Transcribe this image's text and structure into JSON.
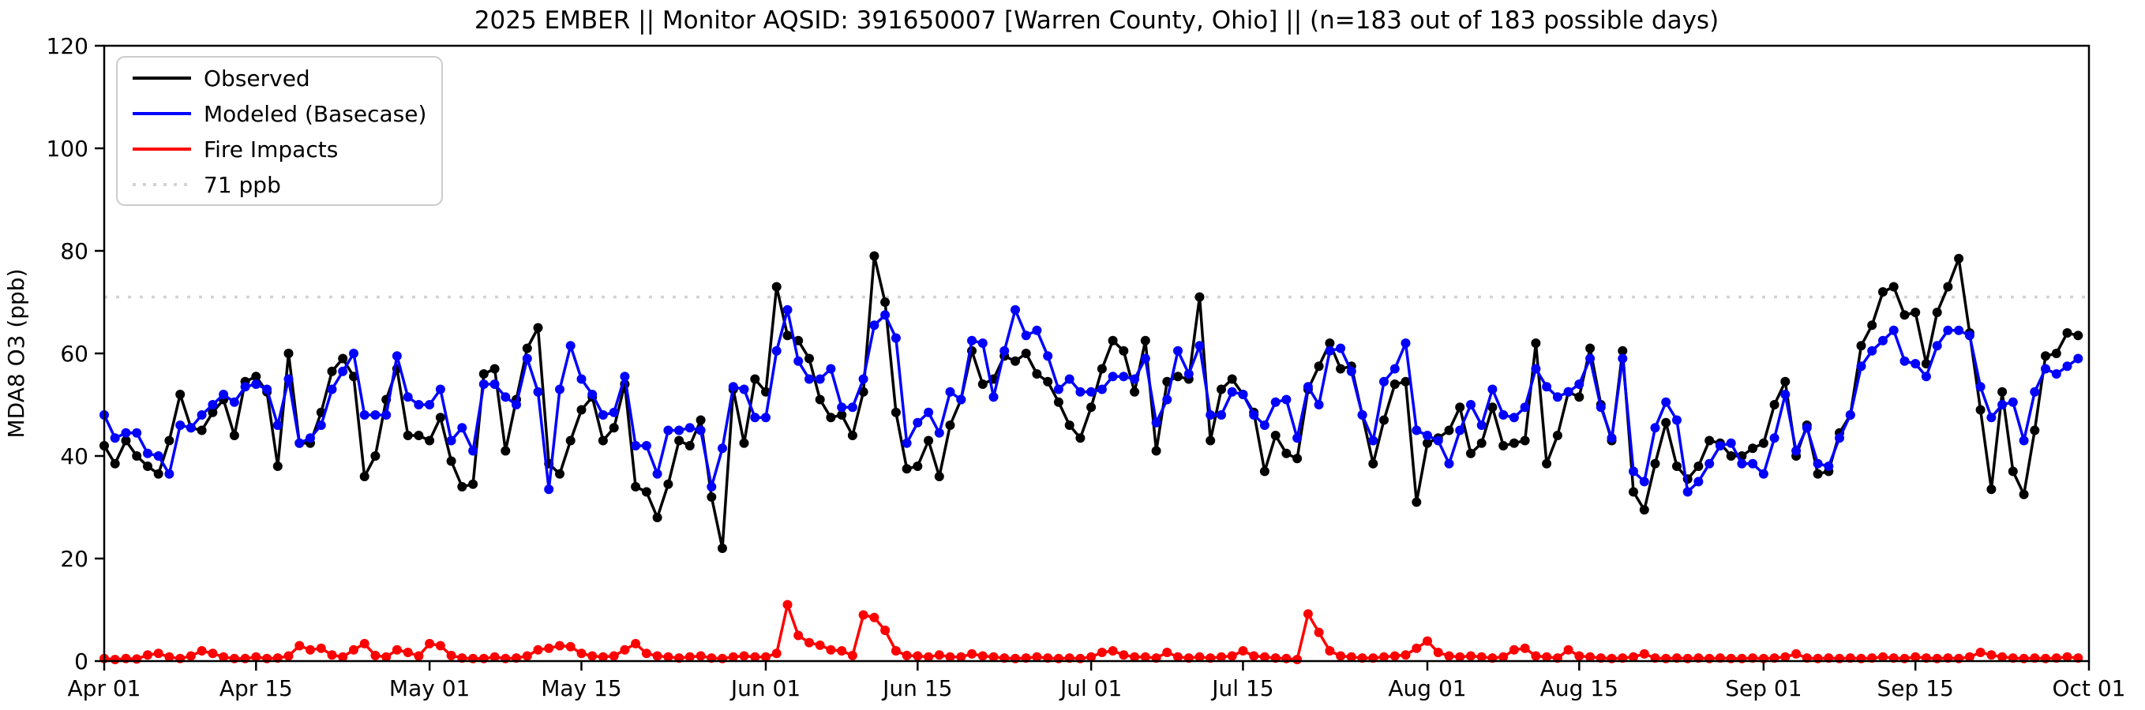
{
  "title": "2025 EMBER || Monitor AQSID: 391650007 [Warren County, Ohio] || (n=183 out of 183 possible days)",
  "axes": {
    "ylabel": "MDA8 O3 (ppb)",
    "yticks": [
      0,
      20,
      40,
      60,
      80,
      100,
      120
    ],
    "ylim": [
      0,
      120
    ],
    "xtick_labels": [
      "Apr 01",
      "Apr 15",
      "May 01",
      "May 15",
      "Jun 01",
      "Jun 15",
      "Jul 01",
      "Jul 15",
      "Aug 01",
      "Aug 15",
      "Sep 01",
      "Sep 15",
      "Oct 01"
    ],
    "xtick_day_index": [
      0,
      14,
      30,
      44,
      61,
      75,
      91,
      105,
      122,
      136,
      153,
      167,
      183
    ],
    "total_days": 183
  },
  "legend": {
    "entries": [
      {
        "label": "Observed",
        "color": "#000000",
        "style": "solid"
      },
      {
        "label": "Modeled (Basecase)",
        "color": "#0000ff",
        "style": "solid"
      },
      {
        "label": "Fire Impacts",
        "color": "#ff0000",
        "style": "solid"
      },
      {
        "label": "71 ppb",
        "color": "#d3d3d3",
        "style": "dotted"
      }
    ]
  },
  "chart_data": {
    "type": "line",
    "title": "2025 EMBER || Monitor AQSID: 391650007 [Warren County, Ohio] || (n=183 out of 183 possible days)",
    "xlabel": "",
    "ylabel": "MDA8 O3 (ppb)",
    "ylim": [
      0,
      120
    ],
    "grid": false,
    "legend_position": "upper left",
    "threshold": {
      "value": 71,
      "label": "71 ppb",
      "color": "#d3d3d3",
      "linestyle": "dotted"
    },
    "x_start_date": "2025-04-01",
    "x_end_date": "2025-09-30",
    "x_axis_end_label": "Oct 01",
    "n_days": 183,
    "series": [
      {
        "name": "Observed",
        "color": "#000000",
        "marker": "circle",
        "values": [
          42,
          38.5,
          43,
          40,
          38,
          36.5,
          43,
          52,
          45.5,
          45,
          48.5,
          51,
          44,
          54.5,
          55.5,
          52.5,
          38,
          60,
          42.5,
          42.5,
          48.5,
          56.5,
          59,
          55.5,
          36,
          40,
          51,
          57,
          44,
          44,
          43,
          47.5,
          39,
          34,
          34.5,
          56,
          57,
          41,
          51,
          61,
          65,
          38.5,
          36.5,
          43,
          49,
          51.5,
          43,
          45.5,
          54,
          34,
          33,
          28,
          34.5,
          43,
          42,
          47,
          32,
          22,
          53,
          42.5,
          55,
          52.5,
          73,
          63.5,
          62.5,
          59,
          51,
          47.5,
          48,
          44,
          52.5,
          79,
          70,
          48.5,
          37.5,
          38,
          43,
          36,
          46,
          51,
          60.5,
          54,
          55,
          59.5,
          58.5,
          60,
          56,
          54.5,
          50.5,
          46,
          43.5,
          49.5,
          57,
          62.5,
          60.5,
          52.5,
          62.5,
          41,
          54.5,
          55.5,
          55,
          71,
          43,
          53,
          55,
          52,
          48.5,
          37,
          44,
          40.5,
          39.5,
          53,
          57.5,
          62,
          57,
          57.5,
          48,
          38.5,
          47,
          54,
          54.5,
          31,
          42.5,
          43.5,
          45,
          49.5,
          40.5,
          42.5,
          49.5,
          42,
          42.5,
          43,
          62,
          38.5,
          44,
          52.5,
          51.5,
          61,
          50,
          43,
          60.5,
          33,
          29.5,
          38.5,
          46.5,
          38,
          35.5,
          38,
          43,
          42.5,
          40,
          40,
          41.5,
          42.5,
          50,
          54.5,
          40,
          46,
          36.5,
          37,
          44.5,
          48,
          61.5,
          65.5,
          72,
          73,
          67.5,
          68,
          58,
          68,
          73,
          78.5,
          64,
          49,
          33.5,
          52.5,
          37,
          32.5,
          45,
          59.5,
          60,
          64,
          63.5
        ]
      },
      {
        "name": "Modeled (Basecase)",
        "color": "#0000ff",
        "marker": "circle",
        "values": [
          48,
          43.5,
          44.5,
          44.5,
          40.5,
          40,
          36.5,
          46,
          45.5,
          48,
          50,
          52,
          50.5,
          53.5,
          54,
          53,
          46,
          55,
          42.5,
          43.5,
          46,
          53,
          56.5,
          60,
          48,
          48,
          48,
          59.5,
          51.5,
          50,
          50,
          53,
          43,
          45.5,
          41,
          54,
          54,
          51.5,
          50,
          59,
          52.5,
          33.5,
          53,
          61.5,
          55,
          52,
          48,
          48.5,
          55.5,
          42,
          42,
          36.5,
          45,
          45,
          45.5,
          45,
          34,
          41.5,
          53.5,
          53,
          47.5,
          47.5,
          60.5,
          68.5,
          58.5,
          55,
          55,
          57,
          49.5,
          49.5,
          55,
          65.5,
          67.5,
          63,
          42.5,
          46.5,
          48.5,
          44.5,
          52.5,
          51,
          62.5,
          62,
          51.5,
          60.5,
          68.5,
          63.5,
          64.5,
          59.5,
          53,
          55,
          52.5,
          52.5,
          53,
          55.5,
          55.5,
          55,
          59,
          46.5,
          51,
          60.5,
          56,
          61.5,
          48,
          48,
          52.5,
          52,
          48,
          46,
          50.5,
          51,
          43.5,
          53.5,
          50,
          60.5,
          61,
          56.5,
          48,
          43,
          54.5,
          57,
          62,
          45,
          44,
          43,
          38.5,
          45,
          50,
          46,
          53,
          48,
          47.5,
          49.5,
          57,
          53.5,
          51.5,
          52.5,
          54,
          59,
          49.5,
          43.5,
          59,
          37,
          35,
          45.5,
          50.5,
          47,
          33,
          35,
          38.5,
          42,
          42.5,
          38.5,
          38.5,
          36.5,
          43.5,
          52,
          41,
          45.5,
          38.5,
          38,
          43.5,
          48,
          57.5,
          60.5,
          62.5,
          64.5,
          58.5,
          58,
          55.5,
          61.5,
          64.5,
          64.5,
          63.5,
          53.5,
          47.5,
          50,
          50.5,
          43,
          52.5,
          57,
          56,
          57.5,
          59
        ]
      },
      {
        "name": "Fire Impacts",
        "color": "#ff0000",
        "marker": "circle",
        "values": [
          0.5,
          0.3,
          0.5,
          0.4,
          1.2,
          1.5,
          0.8,
          0.5,
          1,
          2,
          1.5,
          0.8,
          0.5,
          0.5,
          0.8,
          0.5,
          0.6,
          1,
          3,
          2.2,
          2.5,
          1.2,
          0.8,
          2.2,
          3.4,
          1.1,
          0.8,
          2.2,
          1.7,
          1,
          3.4,
          3,
          1.1,
          0.6,
          0.5,
          0.5,
          0.8,
          0.5,
          0.6,
          1,
          2.2,
          2.5,
          3,
          2.8,
          1.5,
          1,
          0.8,
          1,
          2.2,
          3.4,
          1.5,
          1,
          0.8,
          0.6,
          0.8,
          1,
          0.6,
          0.5,
          0.8,
          1,
          0.8,
          0.8,
          1.5,
          11,
          5,
          3.6,
          3.1,
          2.2,
          2,
          1.1,
          9,
          8.5,
          6,
          2,
          1.1,
          1,
          0.8,
          1.2,
          0.8,
          0.8,
          1.4,
          1,
          0.8,
          0.6,
          0.5,
          0.6,
          0.8,
          0.6,
          0.5,
          0.6,
          0.5,
          0.8,
          1.7,
          2,
          1.2,
          0.8,
          0.8,
          0.6,
          1.7,
          0.8,
          0.6,
          0.8,
          0.6,
          0.8,
          1,
          2,
          1,
          0.8,
          0.6,
          0.5,
          0.3,
          9.2,
          5.6,
          2,
          1,
          0.8,
          0.6,
          0.6,
          0.8,
          1,
          1.2,
          2.5,
          3.9,
          1.7,
          1,
          0.8,
          1,
          0.8,
          0.6,
          0.8,
          2.2,
          2.5,
          1,
          0.8,
          0.6,
          2.2,
          1,
          0.8,
          0.6,
          0.5,
          0.6,
          0.8,
          1.4,
          0.6,
          0.5,
          0.6,
          0.5,
          0.6,
          0.5,
          0.6,
          0.5,
          0.5,
          0.6,
          0.5,
          0.6,
          0.8,
          1.4,
          0.6,
          0.5,
          0.6,
          0.5,
          0.6,
          0.5,
          0.6,
          0.8,
          0.6,
          0.5,
          0.8,
          0.6,
          0.5,
          0.6,
          0.5,
          0.8,
          1.7,
          1.2,
          0.8,
          0.6,
          0.5,
          0.6,
          0.5,
          0.6,
          0.8,
          0.6
        ]
      }
    ]
  },
  "style": {
    "background": "#ffffff",
    "spine_color": "#000000",
    "threshold_color": "#d3d3d3",
    "legend_border_color": "#cccccc"
  }
}
